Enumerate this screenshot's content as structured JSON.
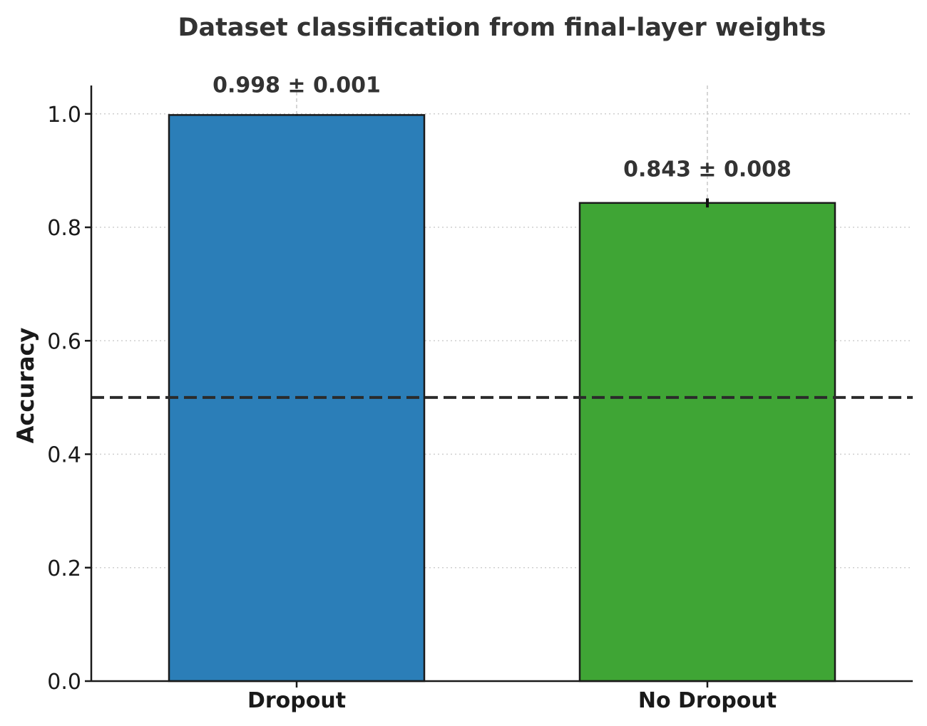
{
  "chart_data": {
    "type": "bar",
    "title": "Dataset classification from final-layer weights",
    "xlabel": "",
    "ylabel": "Accuracy",
    "categories": [
      "Dropout",
      "No Dropout"
    ],
    "values": [
      0.998,
      0.843
    ],
    "errors": [
      0.001,
      0.008
    ],
    "value_labels": [
      "0.998 ± 0.001",
      "0.843 ± 0.008"
    ],
    "colors": [
      "#2b7eb8",
      "#3fa535"
    ],
    "edge_color": "#1a1a1a",
    "ylim": [
      0,
      1.05
    ],
    "yticks": [
      0.0,
      0.2,
      0.4,
      0.6,
      0.8,
      1.0
    ],
    "ytick_labels": [
      "0.0",
      "0.2",
      "0.4",
      "0.6",
      "0.8",
      "1.0"
    ],
    "reference_line": {
      "y": 0.5,
      "style": "dashed",
      "color": "#2b2b2b"
    },
    "grid": true,
    "legend": "none"
  }
}
